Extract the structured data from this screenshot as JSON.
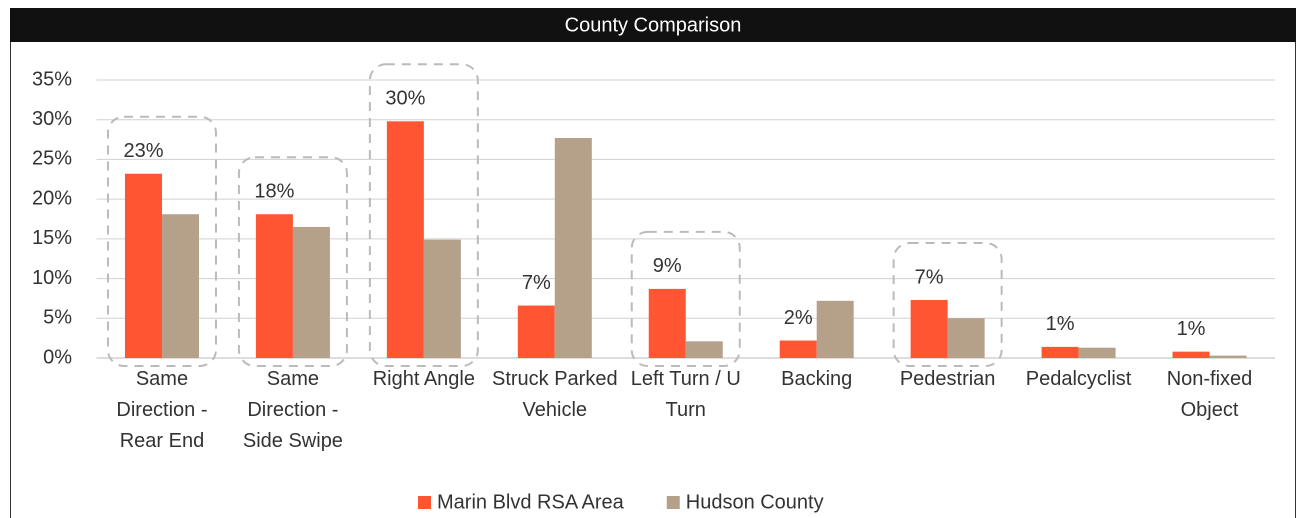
{
  "chart_data": {
    "type": "bar",
    "title": "County Comparison",
    "categories": [
      "Same Direction - Rear End",
      "Same Direction - Side Swipe",
      "Right Angle",
      "Struck Parked Vehicle",
      "Left Turn / U Turn",
      "Backing",
      "Pedestrian",
      "Pedalcyclist",
      "Non-fixed Object"
    ],
    "series": [
      {
        "name": "Marin Blvd RSA Area",
        "color": "#ff5533",
        "values": [
          23.2,
          18.1,
          29.8,
          6.6,
          8.7,
          2.2,
          7.3,
          1.4,
          0.8
        ],
        "value_labels": [
          "23%",
          "18%",
          "30%",
          "7%",
          "9%",
          "2%",
          "7%",
          "1%",
          "1%"
        ]
      },
      {
        "name": "Hudson County",
        "color": "#b5a08a",
        "values": [
          18.1,
          16.5,
          14.9,
          27.7,
          2.1,
          7.2,
          5.0,
          1.3,
          0.3
        ]
      }
    ],
    "ylim": [
      0,
      35
    ],
    "yticks": [
      {
        "value": 0,
        "label": "0%"
      },
      {
        "value": 5,
        "label": "5%"
      },
      {
        "value": 10,
        "label": "10%"
      },
      {
        "value": 15,
        "label": "15%"
      },
      {
        "value": 20,
        "label": "20%"
      },
      {
        "value": 25,
        "label": "25%"
      },
      {
        "value": 30,
        "label": "30%"
      },
      {
        "value": 35,
        "label": "35%"
      }
    ],
    "grid": true,
    "legend": "bottom",
    "highlight": [
      0,
      1,
      2,
      4,
      6
    ]
  }
}
